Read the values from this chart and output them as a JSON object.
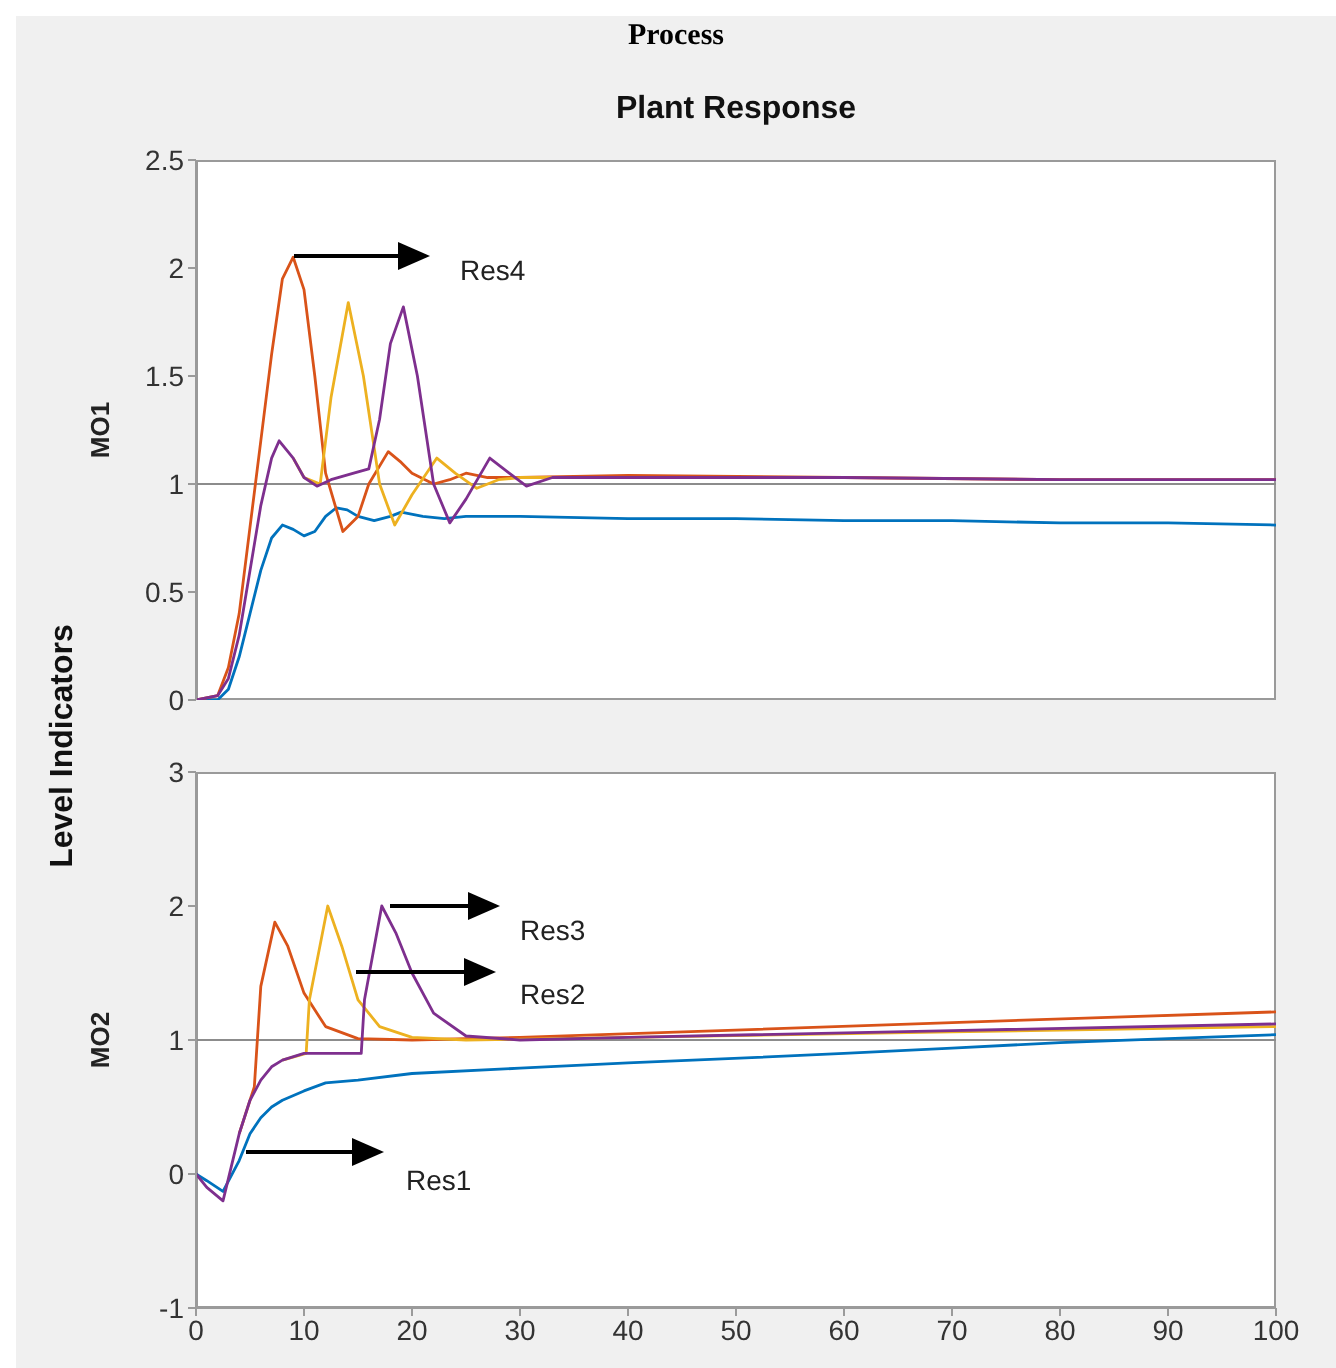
{
  "chart_data": [
    {
      "type": "line",
      "title": "Plant Response",
      "ylabel": "MO1",
      "xlim": [
        0,
        100
      ],
      "xticks": [
        0,
        10,
        20,
        30,
        40,
        50,
        60,
        70,
        80,
        90,
        100
      ],
      "ylim": [
        0,
        2.5
      ],
      "yticks": [
        0,
        0.5,
        1,
        1.5,
        2,
        2.5
      ],
      "tick_labels": "y",
      "line_style": "solid",
      "ref_lines": [
        {
          "axis": "y",
          "value": 1,
          "color": "#8c8c8c"
        }
      ],
      "annotations": [
        "Process",
        "Level Indicators",
        "Res4"
      ],
      "series": [
        {
          "color": "#0072bd",
          "x": [
            0,
            2,
            3,
            4,
            5,
            6,
            7,
            8,
            9,
            10,
            11,
            12,
            13,
            14,
            15,
            16.5,
            18,
            19,
            21,
            23,
            25,
            30,
            40,
            50,
            60,
            70,
            80,
            90,
            100
          ],
          "values": [
            0,
            0,
            0.05,
            0.2,
            0.4,
            0.6,
            0.75,
            0.81,
            0.79,
            0.76,
            0.78,
            0.85,
            0.89,
            0.88,
            0.85,
            0.83,
            0.85,
            0.87,
            0.85,
            0.84,
            0.85,
            0.85,
            0.84,
            0.84,
            0.83,
            0.83,
            0.82,
            0.82,
            0.81
          ]
        },
        {
          "color": "#d95319",
          "x": [
            0,
            2,
            3,
            4,
            5,
            6,
            7,
            8,
            9,
            10,
            11,
            12,
            13.6,
            15,
            16,
            17.8,
            19,
            20,
            22,
            23.5,
            25,
            27,
            30,
            40,
            60,
            80,
            100
          ],
          "values": [
            0,
            0.02,
            0.15,
            0.4,
            0.8,
            1.2,
            1.6,
            1.95,
            2.05,
            1.9,
            1.5,
            1.05,
            0.78,
            0.85,
            1.0,
            1.15,
            1.1,
            1.05,
            1.0,
            1.02,
            1.05,
            1.03,
            1.03,
            1.04,
            1.03,
            1.02,
            1.02
          ]
        },
        {
          "color": "#edb120",
          "x": [
            9,
            10,
            11.5,
            12.5,
            14.1,
            15.5,
            17,
            18.4,
            20,
            22.3,
            24,
            26,
            28,
            30,
            40
          ],
          "values": [
            1.12,
            1.03,
            1.0,
            1.4,
            1.84,
            1.5,
            1.0,
            0.81,
            0.95,
            1.12,
            1.05,
            0.98,
            1.02,
            1.03,
            1.03
          ]
        },
        {
          "color": "#7e2f8e",
          "x": [
            0,
            2,
            3,
            4,
            5,
            6,
            7,
            7.7,
            9,
            10,
            11.2,
            12.5,
            14.6,
            16,
            17,
            18,
            19.2,
            20.5,
            22,
            23.5,
            25,
            27.2,
            29,
            30.6,
            33,
            40,
            60,
            80,
            100
          ],
          "values": [
            0,
            0.02,
            0.1,
            0.3,
            0.6,
            0.9,
            1.12,
            1.2,
            1.12,
            1.03,
            0.99,
            1.02,
            1.05,
            1.07,
            1.3,
            1.65,
            1.82,
            1.5,
            1.0,
            0.82,
            0.93,
            1.12,
            1.05,
            0.99,
            1.03,
            1.03,
            1.03,
            1.02,
            1.02
          ]
        }
      ]
    },
    {
      "type": "line",
      "ylabel": "MO2",
      "xlim": [
        0,
        100
      ],
      "xticks": [
        0,
        10,
        20,
        30,
        40,
        50,
        60,
        70,
        80,
        90,
        100
      ],
      "ylim": [
        -1,
        3
      ],
      "yticks": [
        -1,
        0,
        1,
        2,
        3
      ],
      "line_style": "solid",
      "ref_lines": [
        {
          "axis": "y",
          "value": 1,
          "color": "#8c8c8c"
        }
      ],
      "annotations": [
        "Res3",
        "Res2",
        "Res1"
      ],
      "series": [
        {
          "color": "#0072bd",
          "x": [
            0,
            1,
            2.5,
            4,
            5,
            6,
            7,
            8,
            10,
            12,
            15,
            20,
            30,
            40,
            52,
            60,
            70,
            80,
            90,
            100
          ],
          "values": [
            0,
            -0.05,
            -0.13,
            0.1,
            0.3,
            0.42,
            0.5,
            0.55,
            0.62,
            0.68,
            0.7,
            0.75,
            0.79,
            0.83,
            0.87,
            0.9,
            0.94,
            0.98,
            1.01,
            1.04
          ]
        },
        {
          "color": "#d95319",
          "x": [
            4,
            5,
            5.4,
            6,
            7.3,
            8.5,
            10,
            12,
            15,
            20,
            30,
            52,
            70,
            100
          ],
          "values": [
            0.3,
            0.55,
            0.65,
            1.4,
            1.88,
            1.7,
            1.35,
            1.1,
            1.01,
            1.0,
            1.02,
            1.08,
            1.13,
            1.21
          ]
        },
        {
          "color": "#edb120",
          "x": [
            8,
            10.2,
            10.5,
            12.2,
            13.5,
            15,
            17,
            20,
            25,
            40,
            70,
            100
          ],
          "values": [
            0.85,
            0.9,
            1.3,
            2.0,
            1.7,
            1.3,
            1.1,
            1.02,
            1.0,
            1.02,
            1.06,
            1.1
          ]
        },
        {
          "color": "#7e2f8e",
          "x": [
            0,
            1,
            2.5,
            4,
            5,
            6,
            7,
            8,
            10,
            15.3,
            15.6,
            17.2,
            18.5,
            20,
            22,
            25,
            30,
            40,
            70,
            100
          ],
          "values": [
            0,
            -0.1,
            -0.2,
            0.3,
            0.55,
            0.7,
            0.8,
            0.85,
            0.9,
            0.9,
            1.3,
            2.0,
            1.8,
            1.5,
            1.2,
            1.03,
            1.0,
            1.02,
            1.07,
            1.12
          ]
        }
      ]
    }
  ]
}
